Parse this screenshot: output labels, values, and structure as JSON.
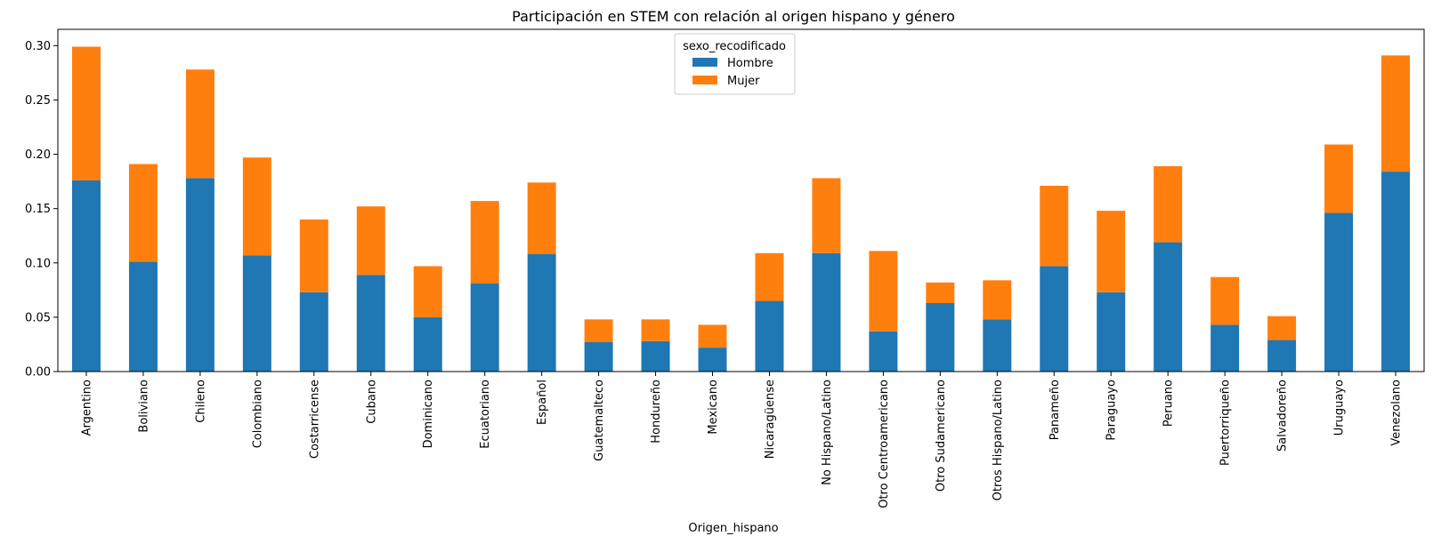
{
  "chart_data": {
    "type": "bar",
    "stacked": true,
    "title": "Participación en STEM con relación al origen hispano y género",
    "xlabel": "Origen_hispano",
    "ylabel": "",
    "ylim": [
      0,
      0.315
    ],
    "yticks": [
      "0.00",
      "0.05",
      "0.10",
      "0.15",
      "0.20",
      "0.25",
      "0.30"
    ],
    "legend": {
      "title": "sexo_recodificado",
      "placement": "top-center"
    },
    "categories": [
      "Argentino",
      "Boliviano",
      "Chileno",
      "Colombiano",
      "Costarricense",
      "Cubano",
      "Dominicano",
      "Ecuatoriano",
      "Español",
      "Guatemalteco",
      "Hondureño",
      "Mexicano",
      "Nicaragüense",
      "No Hispano/Latino",
      "Otro Centroamericano",
      "Otro Sudamericano",
      "Otros Hispano/Latino",
      "Panameño",
      "Paraguayo",
      "Peruano",
      "Puertorriqueño",
      "Salvadoreño",
      "Uruguayo",
      "Venezolano"
    ],
    "series": [
      {
        "name": "Hombre",
        "color": "#1f77b4",
        "values": [
          0.176,
          0.101,
          0.178,
          0.107,
          0.073,
          0.089,
          0.05,
          0.081,
          0.108,
          0.027,
          0.028,
          0.022,
          0.065,
          0.109,
          0.037,
          0.063,
          0.048,
          0.097,
          0.073,
          0.119,
          0.043,
          0.029,
          0.146,
          0.184
        ]
      },
      {
        "name": "Mujer",
        "color": "#ff7f0e",
        "values": [
          0.123,
          0.09,
          0.1,
          0.09,
          0.067,
          0.063,
          0.047,
          0.076,
          0.066,
          0.021,
          0.02,
          0.021,
          0.044,
          0.069,
          0.074,
          0.019,
          0.036,
          0.074,
          0.075,
          0.07,
          0.044,
          0.022,
          0.063,
          0.107
        ]
      }
    ]
  }
}
